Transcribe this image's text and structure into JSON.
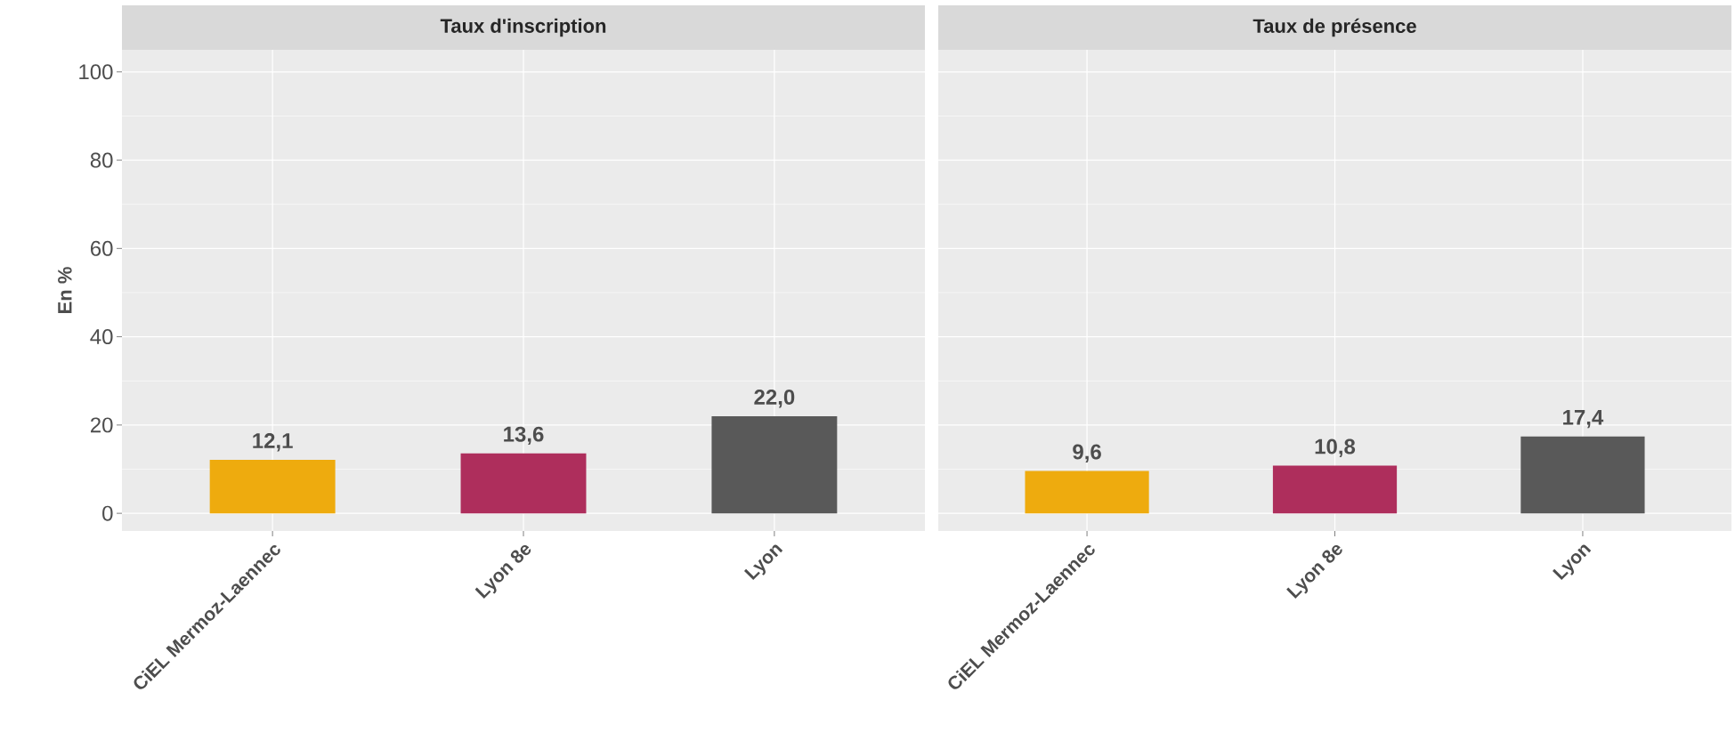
{
  "chart_data": [
    {
      "type": "bar",
      "title": "Taux d'inscription",
      "ylabel": "En %",
      "categories": [
        "CiEL Mermoz-Laennec",
        "Lyon 8e",
        "Lyon"
      ],
      "values": [
        12.1,
        13.6,
        22.0
      ],
      "colors": [
        "#eeab0e",
        "#ae2e5c",
        "#595959"
      ],
      "value_labels": [
        "12,1",
        "13,6",
        "22,0"
      ],
      "ylim": [
        -4,
        105
      ],
      "yticks": [
        0,
        20,
        40,
        60,
        80,
        100
      ],
      "grid": true
    },
    {
      "type": "bar",
      "title": "Taux de présence",
      "categories": [
        "CiEL Mermoz-Laennec",
        "Lyon 8e",
        "Lyon"
      ],
      "values": [
        9.6,
        10.8,
        17.4
      ],
      "colors": [
        "#eeab0e",
        "#ae2e5c",
        "#595959"
      ],
      "value_labels": [
        "9,6",
        "10,8",
        "17,4"
      ],
      "ylim": [
        -4,
        105
      ],
      "yticks": [
        0,
        20,
        40,
        60,
        80,
        100
      ],
      "grid": true,
      "tick_labels": "x"
    }
  ]
}
